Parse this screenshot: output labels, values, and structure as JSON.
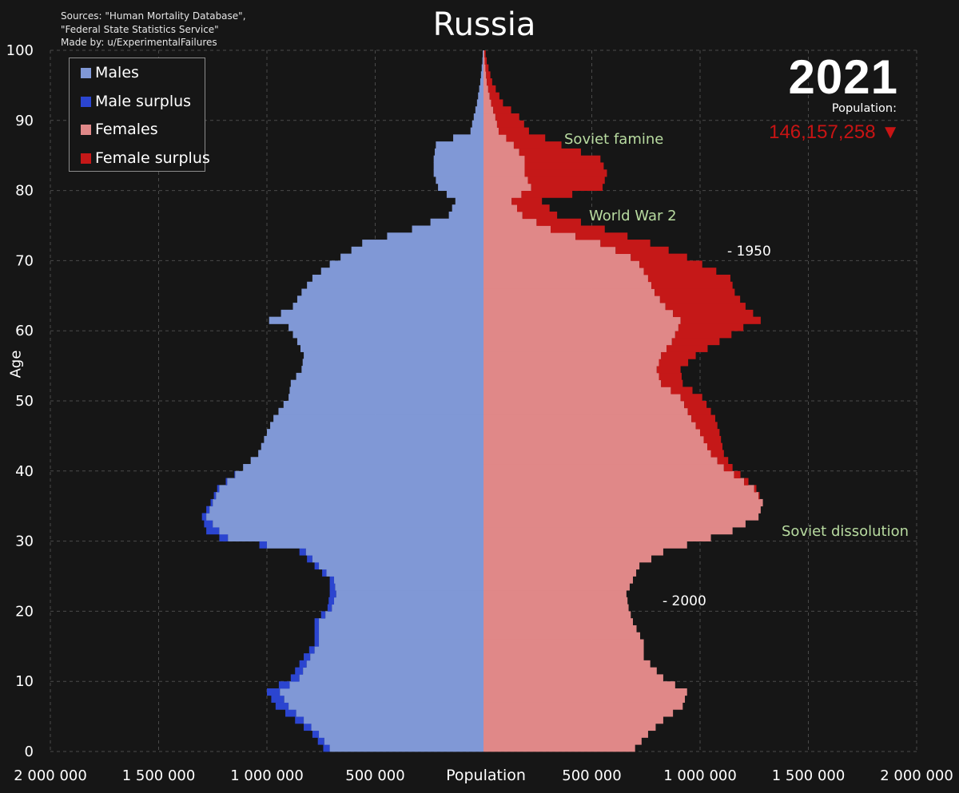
{
  "sources": [
    "Sources: \"Human Mortality Database\",",
    "\"Federal State Statistics Service\"",
    "Made by: u/ExperimentalFailures"
  ],
  "title": "Russia",
  "year": "2021",
  "population_label": "Population:",
  "population_value": "146,157,258",
  "population_trend": "▼",
  "colors": {
    "background": "#161616",
    "males": "#8098d6",
    "male_surplus": "#2b45d0",
    "females": "#e08888",
    "female_surplus": "#c51818",
    "grid": "#4a4a4a",
    "annotation": "#b8dba0",
    "population_value": "#c81414"
  },
  "legend": [
    "Males",
    "Male surplus",
    "Females",
    "Female surplus"
  ],
  "annotations": [
    "Soviet famine",
    "World War 2",
    "Soviet dissolution"
  ],
  "markers": [
    "- 1950",
    "- 2000"
  ],
  "chart_data": {
    "type": "bar",
    "orientation": "horizontal population pyramid",
    "ylabel": "Age",
    "xlabel": "Population",
    "ylim": [
      0,
      100
    ],
    "xlim": [
      -2000000,
      2000000
    ],
    "xticks": [
      "2 000 000",
      "1 500 000",
      "1 000 000",
      "500 000",
      "500 000",
      "1 000 000",
      "1 500 000",
      "2 000 000"
    ],
    "yticks": [
      "0",
      "10",
      "20",
      "30",
      "40",
      "50",
      "60",
      "70",
      "80",
      "90",
      "100"
    ],
    "grid": true,
    "legend_position": "top-left",
    "age_keypoints": [
      0,
      2,
      4,
      6,
      8,
      10,
      13,
      15,
      18,
      20,
      22,
      24,
      26,
      28,
      30,
      31,
      33,
      35,
      37,
      40,
      42,
      45,
      47,
      50,
      52,
      54,
      56,
      58,
      60,
      61,
      63,
      65,
      67,
      69,
      70,
      72,
      74,
      76,
      78,
      80,
      82,
      84,
      86,
      88,
      90,
      92,
      95,
      98,
      100
    ],
    "series": [
      {
        "name": "Males",
        "values": [
          710000,
          760000,
          830000,
          900000,
          940000,
          850000,
          800000,
          760000,
          760000,
          700000,
          680000,
          690000,
          760000,
          820000,
          1180000,
          1220000,
          1280000,
          1250000,
          1220000,
          1110000,
          1040000,
          1000000,
          970000,
          900000,
          890000,
          840000,
          830000,
          860000,
          900000,
          990000,
          880000,
          840000,
          790000,
          710000,
          660000,
          560000,
          330000,
          160000,
          130000,
          210000,
          230000,
          230000,
          220000,
          60000,
          45000,
          30000,
          15000,
          5000,
          2000
        ]
      },
      {
        "name": "Male surplus",
        "values": [
          30000,
          30000,
          40000,
          60000,
          60000,
          40000,
          30000,
          20000,
          20000,
          20000,
          30000,
          20000,
          20000,
          30000,
          40000,
          60000,
          20000,
          10000,
          10000,
          0,
          0,
          0,
          0,
          0,
          0,
          0,
          0,
          0,
          0,
          0,
          0,
          0,
          0,
          0,
          0,
          0,
          0,
          0,
          0,
          0,
          0,
          0,
          0,
          0,
          0,
          0,
          0,
          0,
          0
        ]
      },
      {
        "name": "Females",
        "values": [
          700000,
          760000,
          830000,
          920000,
          940000,
          830000,
          740000,
          740000,
          690000,
          670000,
          660000,
          690000,
          720000,
          830000,
          1050000,
          1150000,
          1270000,
          1290000,
          1250000,
          1110000,
          1050000,
          1000000,
          960000,
          910000,
          820000,
          800000,
          820000,
          870000,
          900000,
          910000,
          840000,
          790000,
          760000,
          720000,
          680000,
          540000,
          310000,
          180000,
          130000,
          220000,
          190000,
          190000,
          140000,
          70000,
          55000,
          35000,
          15000,
          6000,
          2000
        ]
      },
      {
        "name": "Female surplus",
        "values": [
          0,
          0,
          0,
          0,
          0,
          0,
          0,
          0,
          0,
          0,
          0,
          0,
          0,
          0,
          0,
          0,
          0,
          0,
          10000,
          40000,
          60000,
          90000,
          110000,
          100000,
          100000,
          110000,
          160000,
          220000,
          300000,
          370000,
          370000,
          370000,
          380000,
          290000,
          260000,
          230000,
          250000,
          160000,
          140000,
          330000,
          380000,
          350000,
          220000,
          140000,
          110000,
          55000,
          25000,
          9000,
          3000
        ]
      }
    ]
  }
}
